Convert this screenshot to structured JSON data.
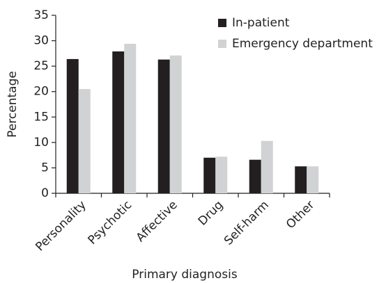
{
  "chart_data": {
    "type": "bar",
    "xlabel": "Primary diagnosis",
    "ylabel": "Percentage",
    "categories": [
      "Personality",
      "Psychotic",
      "Affective",
      "Drug",
      "Self-harm",
      "Other"
    ],
    "series": [
      {
        "name": "In-patient",
        "color": "#231f20",
        "values": [
          26.4,
          27.9,
          26.3,
          7.0,
          6.6,
          5.3
        ]
      },
      {
        "name": "Emergency department",
        "color": "#d1d2d4",
        "values": [
          20.5,
          29.4,
          27.1,
          7.2,
          10.3,
          5.3
        ]
      }
    ],
    "ylim": [
      0,
      35
    ],
    "yticks": [
      0,
      5,
      10,
      15,
      20,
      25,
      30,
      35
    ],
    "grid": false,
    "legend": "upper right"
  }
}
